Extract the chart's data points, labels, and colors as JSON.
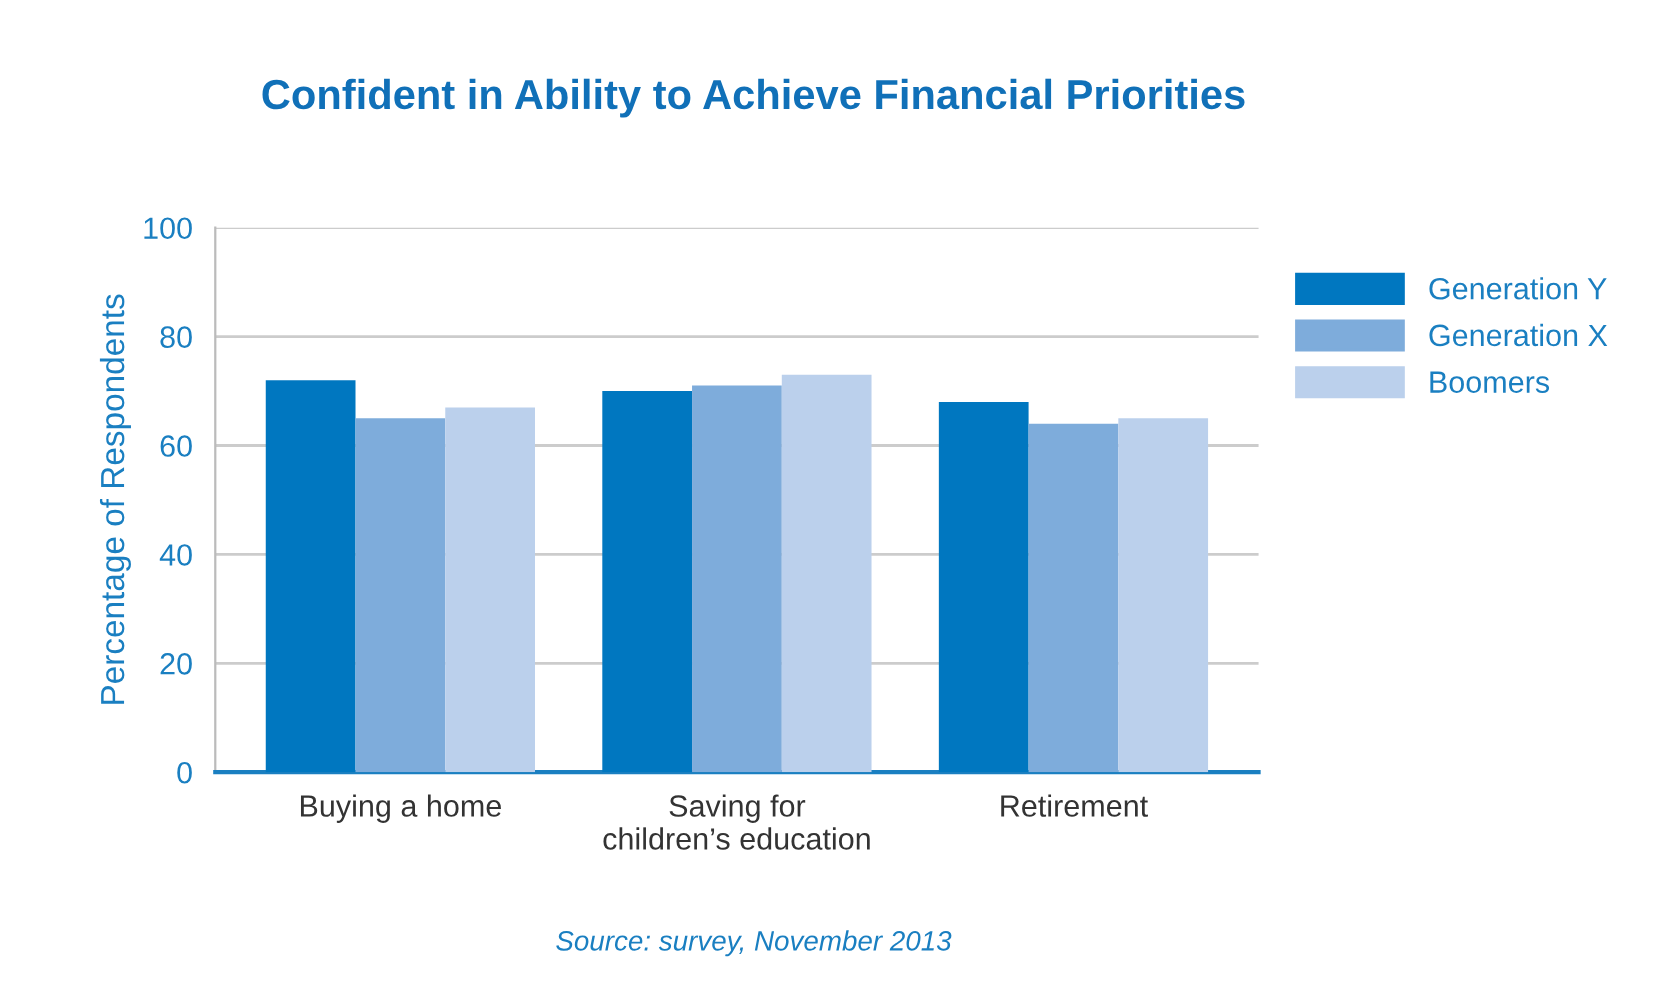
{
  "chart_data": {
    "type": "bar",
    "title": "Confident in Ability to Achieve Financial Priorities",
    "ylabel": "Percentage of Respondents",
    "categories": [
      "Buying a home",
      "Saving for\nchildren’s education",
      "Retirement"
    ],
    "series": [
      {
        "name": "Generation Y",
        "color": "#0077c0",
        "values": [
          72,
          70,
          68
        ]
      },
      {
        "name": "Generation X",
        "color": "#7eacdb",
        "values": [
          65,
          71,
          64
        ]
      },
      {
        "name": "Boomers",
        "color": "#bbd0ec",
        "values": [
          67,
          73,
          65
        ]
      }
    ],
    "ylim": [
      0,
      100
    ],
    "yticks": [
      0,
      20,
      40,
      60,
      80,
      100
    ],
    "grid": "y",
    "legend": "right",
    "annotations": [
      "Source: survey, November 2013"
    ]
  }
}
